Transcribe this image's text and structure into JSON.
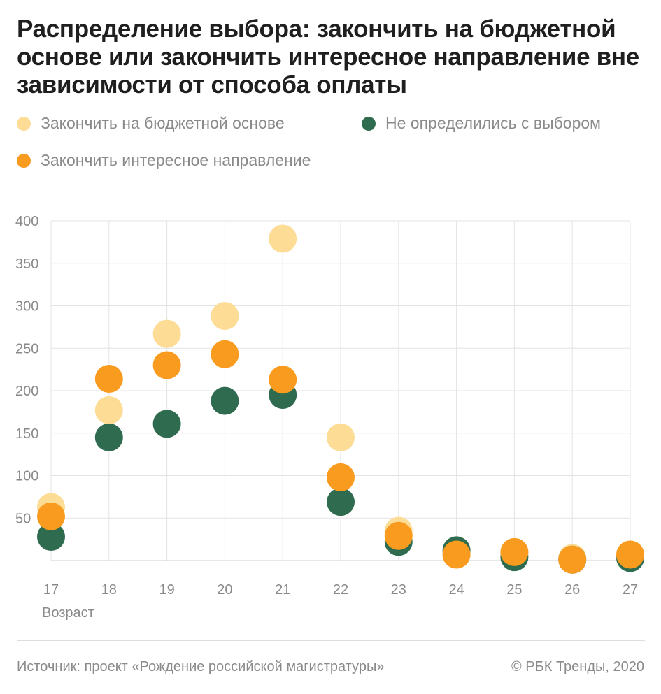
{
  "title": "Распределение выбора: закончить на бюджетной основе или закончить интересное направление вне зависимости от способа оплаты",
  "legend": [
    {
      "label": "Закончить на бюджетной основе",
      "color": "#FDDC96"
    },
    {
      "label": "Не определились с выбором",
      "color": "#2E6B4F"
    },
    {
      "label": "Закончить интересное направление",
      "color": "#F99B1E"
    }
  ],
  "footer": {
    "source": "Источник: проект «Рождение российской магистратуры»",
    "copyright": "© РБК Тренды, 2020"
  },
  "chart_data": {
    "type": "scatter",
    "xlabel": "Возраст",
    "ylabel": "",
    "categories": [
      "17",
      "18",
      "19",
      "20",
      "21",
      "22",
      "23",
      "24",
      "25",
      "26",
      "27"
    ],
    "ylim": [
      0,
      400
    ],
    "yticks": [
      50,
      100,
      150,
      200,
      250,
      300,
      350,
      400
    ],
    "grid": true,
    "legend_position": "top",
    "series": [
      {
        "name": "Закончить на бюджетной основе",
        "color": "#FDDC96",
        "values": [
          63,
          177,
          267,
          288,
          379,
          145,
          35,
          7,
          8,
          3,
          7
        ]
      },
      {
        "name": "Не определились с выбором",
        "color": "#2E6B4F",
        "values": [
          28,
          145,
          161,
          188,
          195,
          69,
          22,
          12,
          4,
          1,
          3
        ]
      },
      {
        "name": "Закончить интересное направление",
        "color": "#F99B1E",
        "values": [
          52,
          214,
          230,
          243,
          213,
          98,
          29,
          7,
          10,
          1,
          7
        ]
      }
    ]
  }
}
